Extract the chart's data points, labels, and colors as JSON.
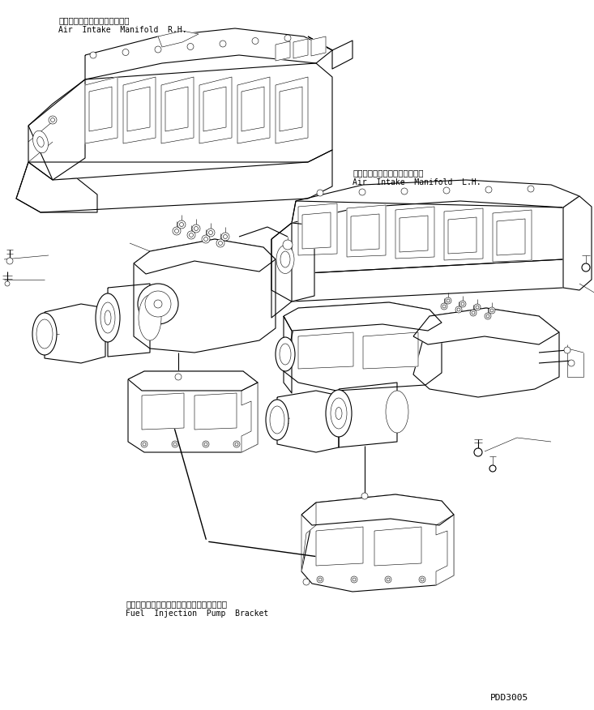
{
  "bg_color": "#ffffff",
  "line_color": "#000000",
  "fig_width": 7.33,
  "fig_height": 8.76,
  "dpi": 100,
  "label_rh_jp": "エアーインテークマニホール右",
  "label_rh_en": "Air  Intake  Manifold  R.H.",
  "label_lh_jp": "エアーインテークマニホール左",
  "label_lh_en": "Air  Intake  Manifold  L.H.",
  "label_bracket_jp": "フェエルインジェクションポンプブラケット",
  "label_bracket_en": "Fuel  Injection  Pump  Bracket",
  "part_number": "PDD3005",
  "lw": 0.8,
  "lw_thin": 0.4,
  "lw_thick": 1.0
}
